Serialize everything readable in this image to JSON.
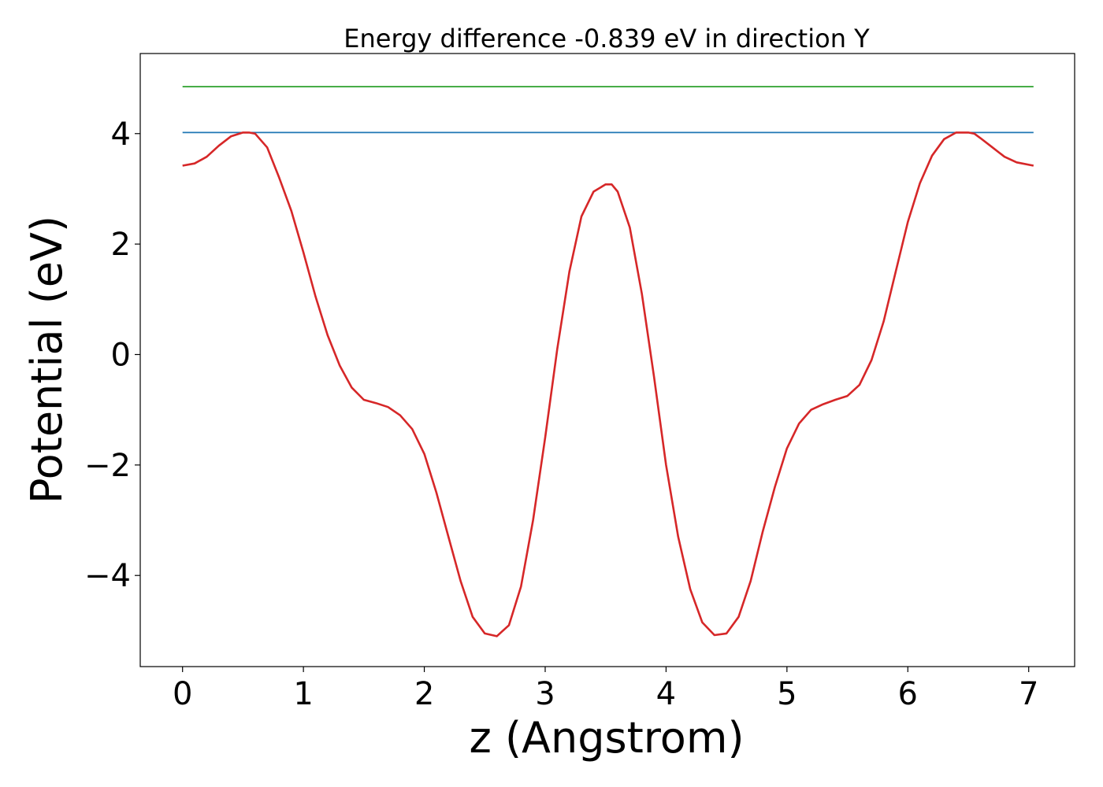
{
  "chart_data": {
    "type": "line",
    "title": "Energy difference -0.839 eV in direction Y",
    "xlabel": "z (Angstrom)",
    "ylabel": "Potential (eV)",
    "xlim": [
      -0.35,
      7.38
    ],
    "ylim": [
      -5.65,
      5.45
    ],
    "xticks": [
      0,
      1,
      2,
      3,
      4,
      5,
      6,
      7
    ],
    "xtick_labels": [
      "0",
      "1",
      "2",
      "3",
      "4",
      "5",
      "6",
      "7"
    ],
    "yticks": [
      4,
      2,
      0,
      -2,
      -4
    ],
    "ytick_labels": [
      "4",
      "2",
      "0",
      "−2",
      "−4"
    ],
    "grid": false,
    "legend": "none",
    "series": [
      {
        "color": "#2ca02c",
        "x": [
          0,
          7.04
        ],
        "y": [
          4.85,
          4.85
        ]
      },
      {
        "color": "#1f77b4",
        "x": [
          0,
          7.04
        ],
        "y": [
          4.02,
          4.02
        ]
      },
      {
        "color": "#d62728",
        "x": [
          0,
          0.1,
          0.2,
          0.3,
          0.4,
          0.5,
          0.55,
          0.6,
          0.7,
          0.8,
          0.9,
          1.0,
          1.1,
          1.2,
          1.3,
          1.4,
          1.5,
          1.6,
          1.7,
          1.8,
          1.9,
          2.0,
          2.1,
          2.2,
          2.3,
          2.4,
          2.5,
          2.6,
          2.7,
          2.8,
          2.9,
          3.0,
          3.1,
          3.2,
          3.3,
          3.4,
          3.5,
          3.55,
          3.6,
          3.7,
          3.8,
          3.9,
          4.0,
          4.1,
          4.2,
          4.3,
          4.4,
          4.5,
          4.6,
          4.7,
          4.8,
          4.9,
          5.0,
          5.1,
          5.2,
          5.3,
          5.4,
          5.5,
          5.6,
          5.7,
          5.8,
          5.9,
          6.0,
          6.1,
          6.2,
          6.3,
          6.4,
          6.5,
          6.55,
          6.6,
          6.7,
          6.8,
          6.9,
          7.04
        ],
        "y": [
          3.42,
          3.46,
          3.58,
          3.78,
          3.95,
          4.02,
          4.02,
          4.0,
          3.75,
          3.2,
          2.6,
          1.85,
          1.05,
          0.35,
          -0.2,
          -0.6,
          -0.82,
          -0.88,
          -0.95,
          -1.1,
          -1.35,
          -1.8,
          -2.5,
          -3.3,
          -4.1,
          -4.75,
          -5.05,
          -5.1,
          -4.9,
          -4.2,
          -3.0,
          -1.5,
          0.1,
          1.5,
          2.5,
          2.95,
          3.08,
          3.08,
          2.95,
          2.3,
          1.1,
          -0.4,
          -2.0,
          -3.3,
          -4.25,
          -4.85,
          -5.08,
          -5.05,
          -4.75,
          -4.1,
          -3.2,
          -2.4,
          -1.7,
          -1.25,
          -1.0,
          -0.9,
          -0.82,
          -0.75,
          -0.55,
          -0.1,
          0.6,
          1.5,
          2.4,
          3.1,
          3.6,
          3.9,
          4.02,
          4.02,
          4.0,
          3.92,
          3.75,
          3.58,
          3.48,
          3.42
        ]
      }
    ]
  }
}
